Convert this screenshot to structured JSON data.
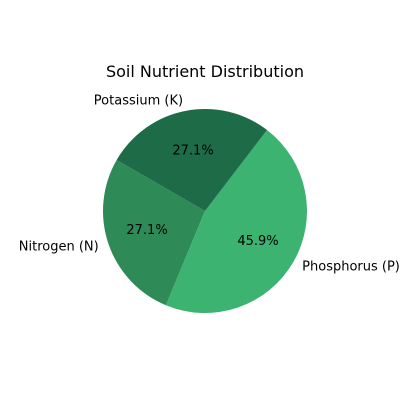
{
  "chart_data": {
    "type": "pie",
    "title": "Soil Nutrient Distribution",
    "categories": [
      "Nitrogen (N)",
      "Phosphorus (P)",
      "Potassium (K)"
    ],
    "values": [
      27.1,
      45.9,
      27.1
    ],
    "value_labels": [
      "27.1%",
      "45.9%",
      "27.1%"
    ],
    "colors": [
      "#2e8b57",
      "#3cb371",
      "#1e6b47"
    ],
    "start_angle_deg": 150,
    "direction": "counterclockwise"
  }
}
